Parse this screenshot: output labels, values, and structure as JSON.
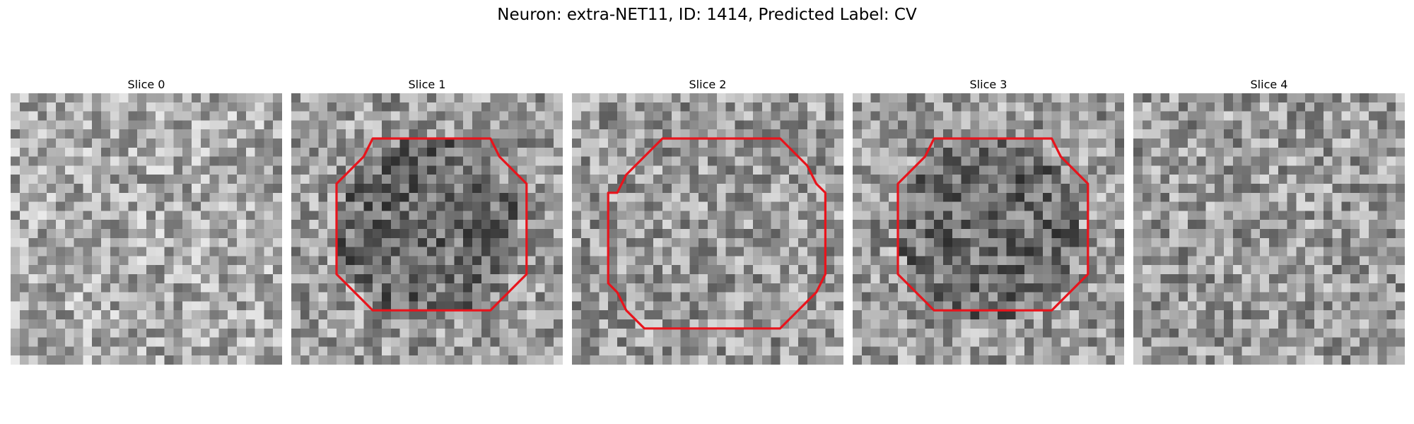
{
  "figure": {
    "title": "Neuron: extra-NET11, ID: 1414, Predicted Label: CV"
  },
  "colors": {
    "contour": "#e8141c",
    "colormap": "gray"
  },
  "panels": [
    {
      "title": "Slice 0",
      "seed": 11,
      "contour": "none",
      "tone": "light"
    },
    {
      "title": "Slice 1",
      "seed": 23,
      "contour": "medium",
      "tone": "dark-center"
    },
    {
      "title": "Slice 2",
      "seed": 37,
      "contour": "large",
      "tone": "mid"
    },
    {
      "title": "Slice 3",
      "seed": 41,
      "contour": "medium",
      "tone": "dark-center"
    },
    {
      "title": "Slice 4",
      "seed": 53,
      "contour": "none",
      "tone": "mid"
    }
  ]
}
